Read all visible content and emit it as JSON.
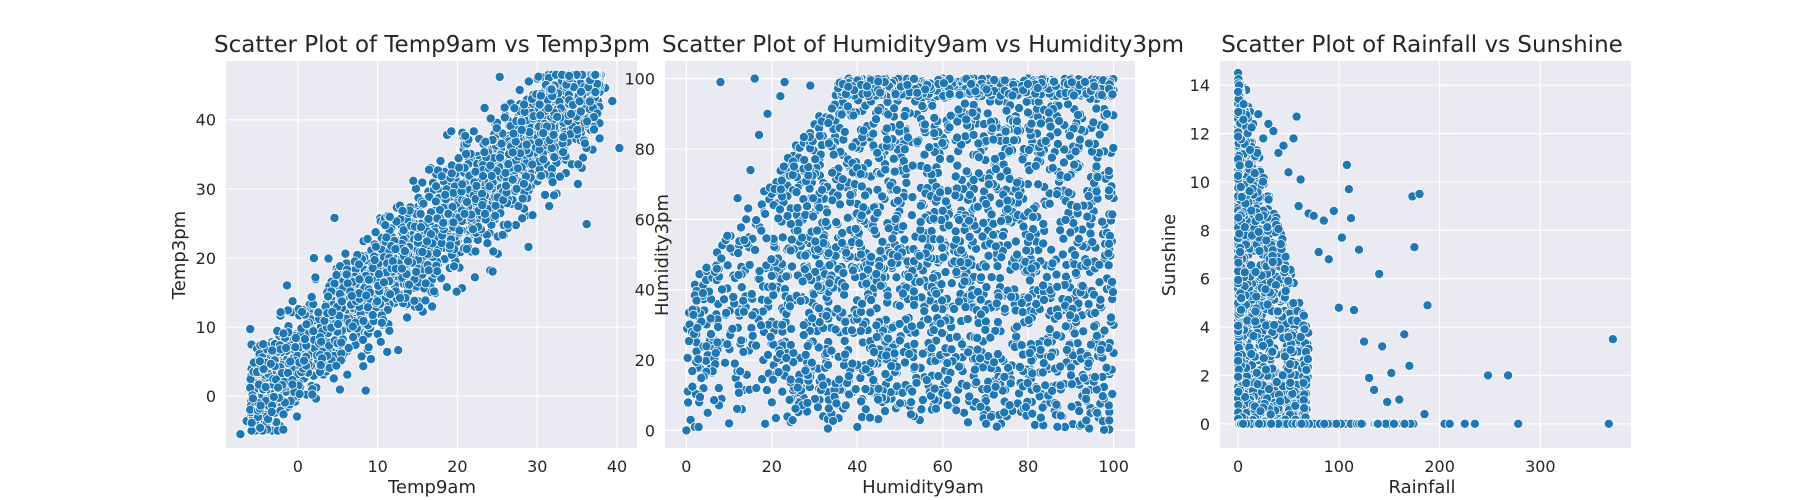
{
  "colors": {
    "background": "#ffffff",
    "panel": "#eaeaf2",
    "grid": "#ffffff",
    "point_fill": "#1f77b4",
    "point_edge": "#ffffff",
    "text": "#262626"
  },
  "chart_data": [
    {
      "type": "scatter",
      "title": "Scatter Plot of Temp9am vs Temp3pm",
      "xlabel": "Temp9am",
      "ylabel": "Temp3pm",
      "xlim": [
        -9,
        42.5
      ],
      "ylim": [
        -7.5,
        48.5
      ],
      "xticks": [
        0,
        10,
        20,
        30,
        40
      ],
      "yticks": [
        0,
        10,
        20,
        30,
        40
      ],
      "grid": true,
      "trend": {
        "slope": 1.07,
        "intercept": 5.2,
        "spread": 4.0
      },
      "points": [
        [
          -7.2,
          -5.5
        ],
        [
          -6.4,
          -3.6
        ],
        [
          -5.3,
          -4.2
        ],
        [
          -3.9,
          -1.5
        ],
        [
          -3.1,
          0.5
        ],
        [
          -2.6,
          -3.8
        ],
        [
          -1.8,
          1.7
        ],
        [
          -1.2,
          -1.6
        ],
        [
          -0.6,
          4.2
        ],
        [
          0.3,
          2.8
        ],
        [
          0.9,
          9.6
        ],
        [
          1.5,
          5.4
        ],
        [
          2.1,
          0.8
        ],
        [
          2.8,
          8.4
        ],
        [
          3.4,
          12.1
        ],
        [
          4.6,
          25.8
        ],
        [
          5.1,
          9.7
        ],
        [
          6.2,
          3.1
        ],
        [
          7.3,
          13.5
        ],
        [
          8.5,
          0.8
        ],
        [
          10.1,
          19.8
        ],
        [
          11.2,
          6.4
        ],
        [
          12.4,
          27.3
        ],
        [
          14.1,
          20.6
        ],
        [
          15.6,
          30.9
        ],
        [
          17.2,
          14.9
        ],
        [
          18.7,
          37.8
        ],
        [
          20.1,
          22.4
        ],
        [
          21.6,
          34.2
        ],
        [
          23.4,
          41.7
        ],
        [
          24.1,
          18.2
        ],
        [
          25.3,
          46.2
        ],
        [
          26.5,
          33.8
        ],
        [
          27.8,
          44.3
        ],
        [
          28.9,
          21.6
        ],
        [
          29.6,
          38.6
        ],
        [
          30.7,
          46.1
        ],
        [
          31.5,
          27.5
        ],
        [
          32.8,
          46.6
        ],
        [
          33.4,
          36.1
        ],
        [
          34.2,
          42.8
        ],
        [
          35.1,
          30.7
        ],
        [
          36.2,
          24.9
        ],
        [
          37.0,
          45.6
        ],
        [
          37.8,
          39.5
        ],
        [
          38.5,
          44.6
        ],
        [
          39.4,
          42.7
        ],
        [
          40.3,
          35.9
        ]
      ]
    },
    {
      "type": "scatter",
      "title": "Scatter Plot of Humidity9am vs Humidity3pm",
      "xlabel": "Humidity9am",
      "ylabel": "Humidity3pm",
      "xlim": [
        -5,
        105
      ],
      "ylim": [
        -5,
        105
      ],
      "xticks": [
        0,
        20,
        40,
        60,
        80,
        100
      ],
      "yticks": [
        0,
        20,
        40,
        60,
        80,
        100
      ],
      "grid": true,
      "points": [
        [
          0,
          0
        ],
        [
          1,
          3
        ],
        [
          2,
          1
        ],
        [
          3,
          8
        ],
        [
          4,
          12
        ],
        [
          5,
          5
        ],
        [
          6,
          24
        ],
        [
          7,
          33
        ],
        [
          8,
          99
        ],
        [
          9,
          54
        ],
        [
          10,
          2
        ],
        [
          11,
          44
        ],
        [
          12,
          66
        ],
        [
          13,
          6
        ],
        [
          14,
          60
        ],
        [
          15,
          74
        ],
        [
          16,
          100
        ],
        [
          17,
          84
        ],
        [
          18,
          20
        ],
        [
          19,
          90
        ],
        [
          20,
          8
        ],
        [
          22,
          95
        ],
        [
          23,
          99
        ],
        [
          25,
          78
        ],
        [
          27,
          12
        ],
        [
          29,
          98
        ],
        [
          30,
          87
        ],
        [
          32,
          4
        ],
        [
          35,
          92
        ],
        [
          38,
          100
        ],
        [
          40,
          1
        ],
        [
          42,
          6
        ],
        [
          45,
          100
        ],
        [
          48,
          9
        ],
        [
          50,
          100
        ],
        [
          55,
          6
        ],
        [
          60,
          100
        ],
        [
          65,
          5
        ],
        [
          70,
          100
        ],
        [
          75,
          4
        ],
        [
          80,
          100
        ],
        [
          85,
          9
        ],
        [
          88,
          4
        ],
        [
          90,
          100
        ],
        [
          92,
          13
        ],
        [
          95,
          15
        ],
        [
          97,
          8
        ],
        [
          98,
          53
        ],
        [
          99,
          16
        ],
        [
          100,
          100
        ],
        [
          100,
          30
        ],
        [
          100,
          66
        ],
        [
          100,
          22
        ]
      ]
    },
    {
      "type": "scatter",
      "title": "Scatter Plot of Rainfall vs Sunshine",
      "xlabel": "Rainfall",
      "ylabel": "Sunshine",
      "xlim": [
        -18,
        390
      ],
      "ylim": [
        -1.0,
        15.0
      ],
      "xticks": [
        0,
        100,
        200,
        300
      ],
      "yticks": [
        0,
        2,
        4,
        6,
        8,
        10,
        12,
        14
      ],
      "grid": true,
      "points": [
        [
          0,
          14.5
        ],
        [
          0,
          13.9
        ],
        [
          1,
          14.1
        ],
        [
          2,
          13.5
        ],
        [
          3,
          12.8
        ],
        [
          5,
          13.9
        ],
        [
          8,
          13.8
        ],
        [
          10,
          13.1
        ],
        [
          12,
          12.9
        ],
        [
          15,
          12.4
        ],
        [
          20,
          12.8
        ],
        [
          25,
          11.8
        ],
        [
          30,
          12.4
        ],
        [
          35,
          12.1
        ],
        [
          40,
          11.2
        ],
        [
          45,
          11.5
        ],
        [
          50,
          10.4
        ],
        [
          55,
          11.8
        ],
        [
          58,
          12.7
        ],
        [
          60,
          9.0
        ],
        [
          62,
          10.1
        ],
        [
          70,
          8.7
        ],
        [
          75,
          8.6
        ],
        [
          80,
          7.1
        ],
        [
          85,
          8.4
        ],
        [
          90,
          6.8
        ],
        [
          95,
          8.8
        ],
        [
          100,
          4.8
        ],
        [
          103,
          7.7
        ],
        [
          108,
          10.7
        ],
        [
          110,
          9.7
        ],
        [
          112,
          8.5
        ],
        [
          115,
          4.7
        ],
        [
          120,
          7.2
        ],
        [
          125,
          3.4
        ],
        [
          130,
          1.9
        ],
        [
          135,
          1.4
        ],
        [
          140,
          6.2
        ],
        [
          143,
          3.2
        ],
        [
          148,
          0.9
        ],
        [
          152,
          2.1
        ],
        [
          160,
          1.0
        ],
        [
          165,
          3.7
        ],
        [
          170,
          2.4
        ],
        [
          173,
          9.4
        ],
        [
          175,
          7.3
        ],
        [
          180,
          9.5
        ],
        [
          185,
          0.4
        ],
        [
          188,
          4.9
        ],
        [
          205,
          0
        ],
        [
          210,
          0
        ],
        [
          225,
          0
        ],
        [
          235,
          0
        ],
        [
          248,
          2.0
        ],
        [
          268,
          2.0
        ],
        [
          278,
          0
        ],
        [
          368,
          0
        ],
        [
          372,
          3.5
        ]
      ]
    }
  ]
}
